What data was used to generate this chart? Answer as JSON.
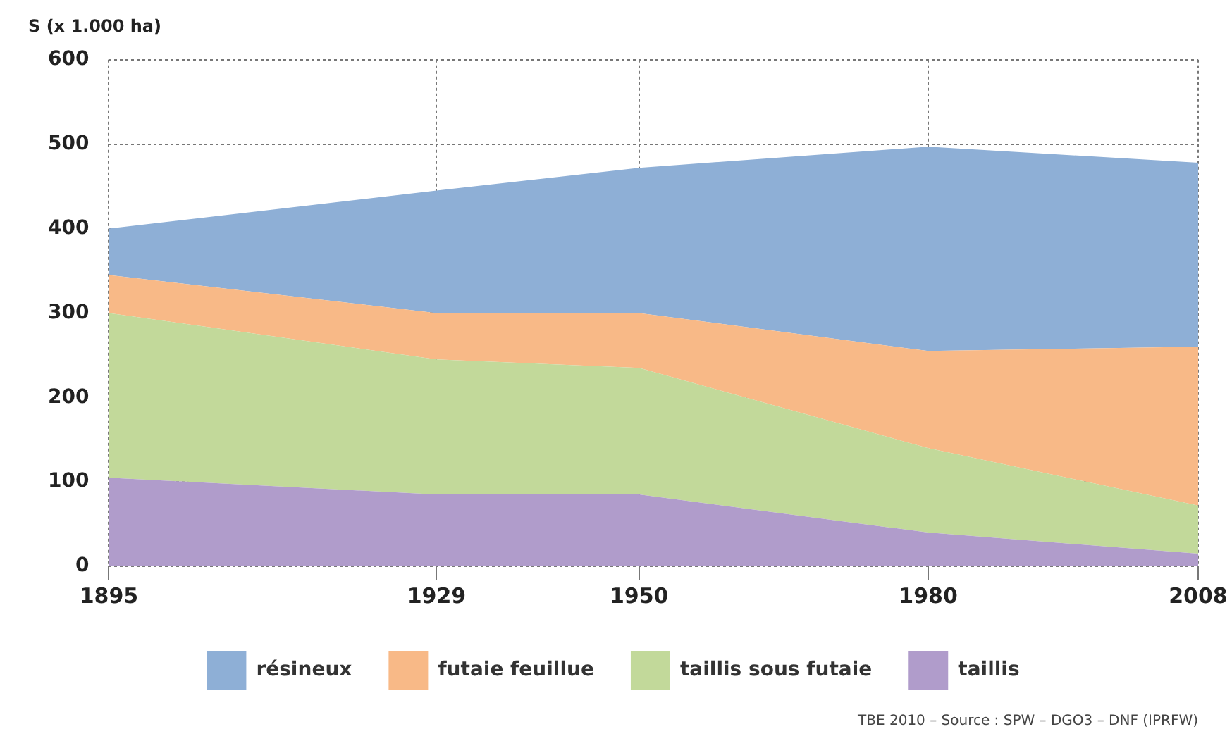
{
  "chart_data": {
    "type": "area",
    "stacked": true,
    "ylabel": "S (x 1.000 ha)",
    "x": [
      1895,
      1929,
      1950,
      1980,
      2008
    ],
    "xlim": [
      1895,
      2008
    ],
    "xticks": [
      1895,
      1929,
      1950,
      1980,
      2008
    ],
    "ylim": [
      0,
      600
    ],
    "yticks": [
      0,
      100,
      200,
      300,
      400,
      500,
      600
    ],
    "grid": true,
    "legend": "bottom",
    "series": [
      {
        "name": "taillis",
        "color": "#b09ccb",
        "values": [
          105,
          85,
          85,
          40,
          15
        ]
      },
      {
        "name": "taillis sous futaie",
        "color": "#c2d99a",
        "values": [
          195,
          160,
          150,
          100,
          57
        ]
      },
      {
        "name": "futaie feuillue",
        "color": "#f8b987",
        "values": [
          45,
          55,
          65,
          115,
          188
        ]
      },
      {
        "name": "résineux",
        "color": "#8eafd6",
        "values": [
          55,
          145,
          172,
          242,
          218
        ]
      }
    ],
    "annotations": [
      "TBE 2010 – Source : SPW – DGO3 – DNF (IPRFW)"
    ]
  }
}
